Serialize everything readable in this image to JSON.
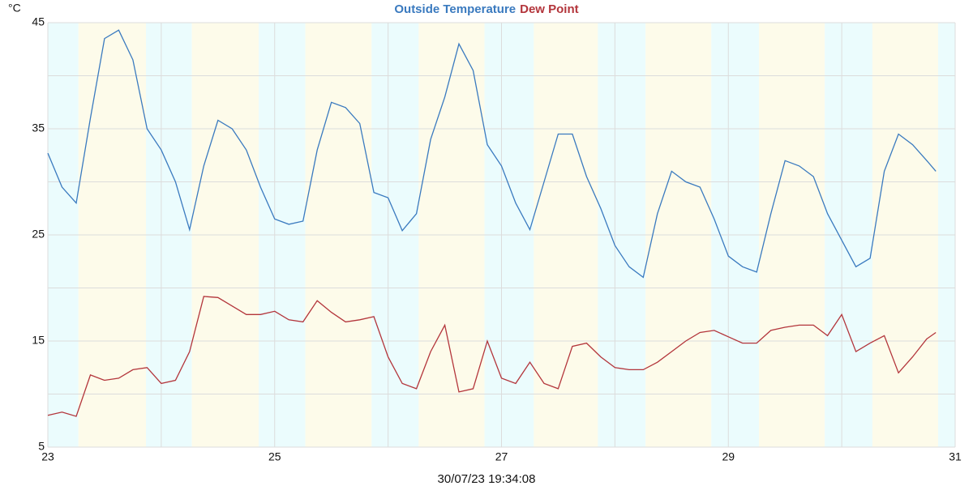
{
  "chart_data": {
    "type": "line",
    "title_series_legend": true,
    "y_unit": "°C",
    "footer": "30/07/23 19:34:08",
    "x": [
      23.0,
      23.125,
      23.25,
      23.375,
      23.5,
      23.625,
      23.75,
      23.875,
      24.0,
      24.125,
      24.25,
      24.375,
      24.5,
      24.625,
      24.75,
      24.875,
      25.0,
      25.125,
      25.25,
      25.375,
      25.5,
      25.625,
      25.75,
      25.875,
      26.0,
      26.125,
      26.25,
      26.375,
      26.5,
      26.625,
      26.75,
      26.875,
      27.0,
      27.125,
      27.25,
      27.375,
      27.5,
      27.625,
      27.75,
      27.875,
      28.0,
      28.125,
      28.25,
      28.375,
      28.5,
      28.625,
      28.75,
      28.875,
      29.0,
      29.125,
      29.25,
      29.375,
      29.5,
      29.625,
      29.75,
      29.875,
      30.0,
      30.125,
      30.25,
      30.375,
      30.5,
      30.625,
      30.75,
      30.83
    ],
    "series": [
      {
        "name": "Outside Temperature",
        "color": "#3a7abf",
        "values": [
          32.7,
          29.5,
          28.0,
          36,
          43.5,
          44.3,
          41.5,
          35,
          33,
          30,
          25.5,
          31.5,
          35.8,
          35,
          33,
          29.5,
          26.5,
          26,
          26.3,
          33,
          37.5,
          37,
          35.5,
          29,
          28.5,
          25.4,
          27,
          34,
          38,
          43,
          40.5,
          33.5,
          31.5,
          28,
          25.5,
          30,
          34.5,
          34.5,
          30.5,
          27.5,
          24,
          22,
          21,
          27,
          31,
          30,
          29.5,
          26.5,
          23,
          22,
          21.5,
          27,
          32,
          31.5,
          30.5,
          27,
          24.5,
          22,
          22.8,
          31,
          34.5,
          33.5,
          32,
          31
        ]
      },
      {
        "name": "Dew Point",
        "color": "#b3353b",
        "values": [
          8.0,
          8.3,
          7.9,
          11.8,
          11.3,
          11.5,
          12.3,
          12.5,
          11.0,
          11.3,
          14,
          19.2,
          19.1,
          18.3,
          17.5,
          17.5,
          17.8,
          17,
          16.8,
          18.8,
          17.7,
          16.8,
          17,
          17.3,
          13.5,
          11,
          10.5,
          14,
          16.5,
          10.2,
          10.5,
          15,
          11.5,
          11,
          13,
          11,
          10.5,
          14.5,
          14.8,
          13.5,
          12.5,
          12.3,
          12.3,
          13,
          14,
          15,
          15.8,
          16,
          15.4,
          14.8,
          14.8,
          16,
          16.3,
          16.5,
          16.5,
          15.5,
          17.5,
          14,
          14.8,
          15.5,
          12,
          13.5,
          15.2,
          15.8
        ]
      }
    ],
    "xlim": [
      23,
      31
    ],
    "xticks": [
      23,
      25,
      27,
      29,
      31
    ],
    "minor_xticks": [
      24,
      26,
      28,
      30
    ],
    "ylim": [
      5,
      45
    ],
    "yticks": [
      5,
      15,
      25,
      35,
      45
    ],
    "minor_yticks": [
      10,
      20,
      30,
      40
    ],
    "grid": true,
    "night_color": "#ebfcfd",
    "day_color": "#fdfbea",
    "night_bands": [
      [
        23,
        23.27
      ],
      [
        23.865,
        24.27
      ],
      [
        24.86,
        25.27
      ],
      [
        25.855,
        26.27
      ],
      [
        26.85,
        27.285
      ],
      [
        27.85,
        28.27
      ],
      [
        28.85,
        29.27
      ],
      [
        29.85,
        30.27
      ],
      [
        30.85,
        31
      ]
    ]
  }
}
